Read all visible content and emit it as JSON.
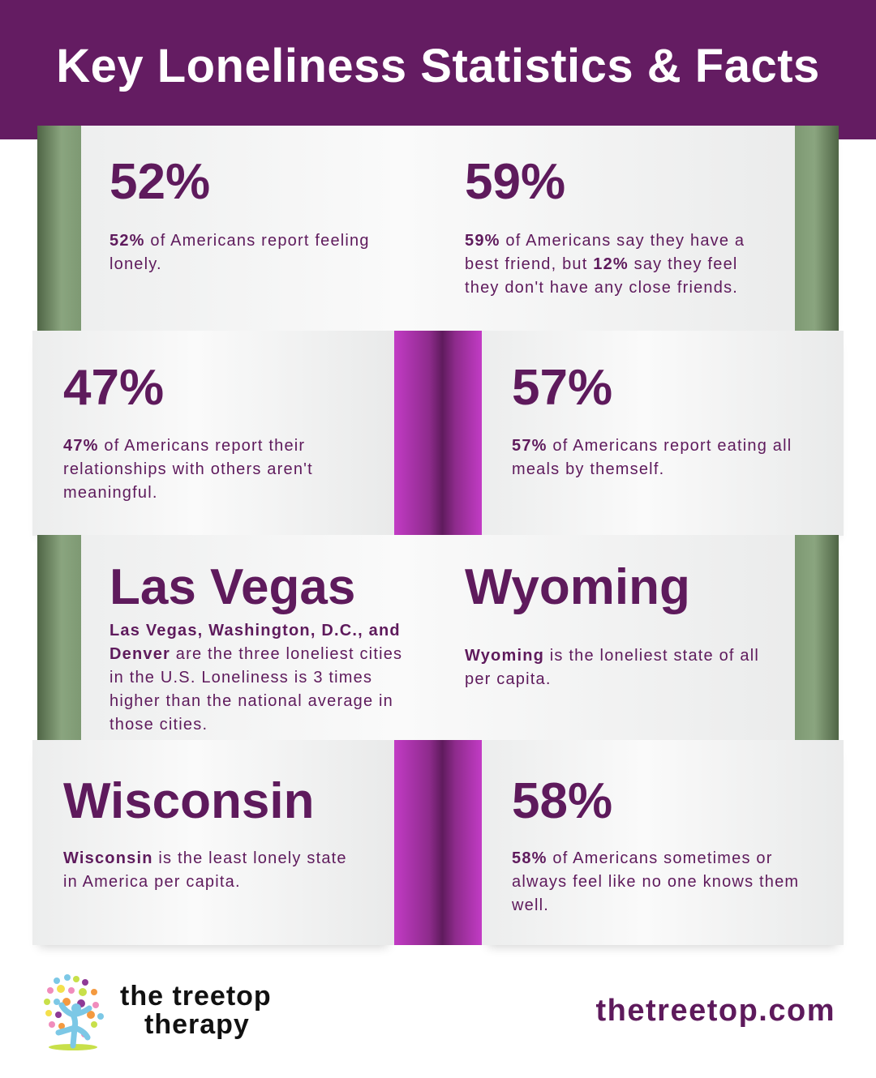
{
  "title": "Key Loneliness Statistics & Facts",
  "colors": {
    "header": "#641c62",
    "text": "#5e1a5c",
    "green_accent": "#8aa57f",
    "purple_accent": "#c23bc5"
  },
  "facts": [
    {
      "heading": "52%",
      "desc": [
        {
          "text": "52%",
          "bold": true
        },
        {
          "text": " of Americans report feeling lonely."
        }
      ]
    },
    {
      "heading": "59%",
      "desc": [
        {
          "text": "59%",
          "bold": true
        },
        {
          "text": " of Americans say they have a best friend, but "
        },
        {
          "text": "12%",
          "bold": true
        },
        {
          "text": " say they feel they don't have any close friends."
        }
      ]
    },
    {
      "heading": "47%",
      "desc": [
        {
          "text": "47%",
          "bold": true
        },
        {
          "text": " of Americans report their relationships with others aren't meaningful."
        }
      ]
    },
    {
      "heading": "57%",
      "desc": [
        {
          "text": "57%",
          "bold": true
        },
        {
          "text": " of Americans report eating all meals by themself."
        }
      ]
    },
    {
      "heading": "Las Vegas",
      "desc": [
        {
          "text": "Las Vegas, Washington, D.C., and Denver",
          "bold": true
        },
        {
          "text": " are the three loneliest cities in the U.S. Loneliness is 3 times higher than the national average in those cities."
        }
      ]
    },
    {
      "heading": "Wyoming",
      "desc": [
        {
          "text": "Wyoming",
          "bold": true
        },
        {
          "text": " is the loneliest state of all per capita."
        }
      ]
    },
    {
      "heading": "Wisconsin",
      "desc": [
        {
          "text": "Wisconsin",
          "bold": true
        },
        {
          "text": " is the least lonely state in America per capita."
        }
      ]
    },
    {
      "heading": "58%",
      "desc": [
        {
          "text": "58%",
          "bold": true
        },
        {
          "text": " of Americans sometimes or always feel like no one knows them well."
        }
      ]
    }
  ],
  "footer": {
    "brand_line1": "the treetop",
    "brand_line2": "therapy",
    "url": "thetreetop.com"
  }
}
